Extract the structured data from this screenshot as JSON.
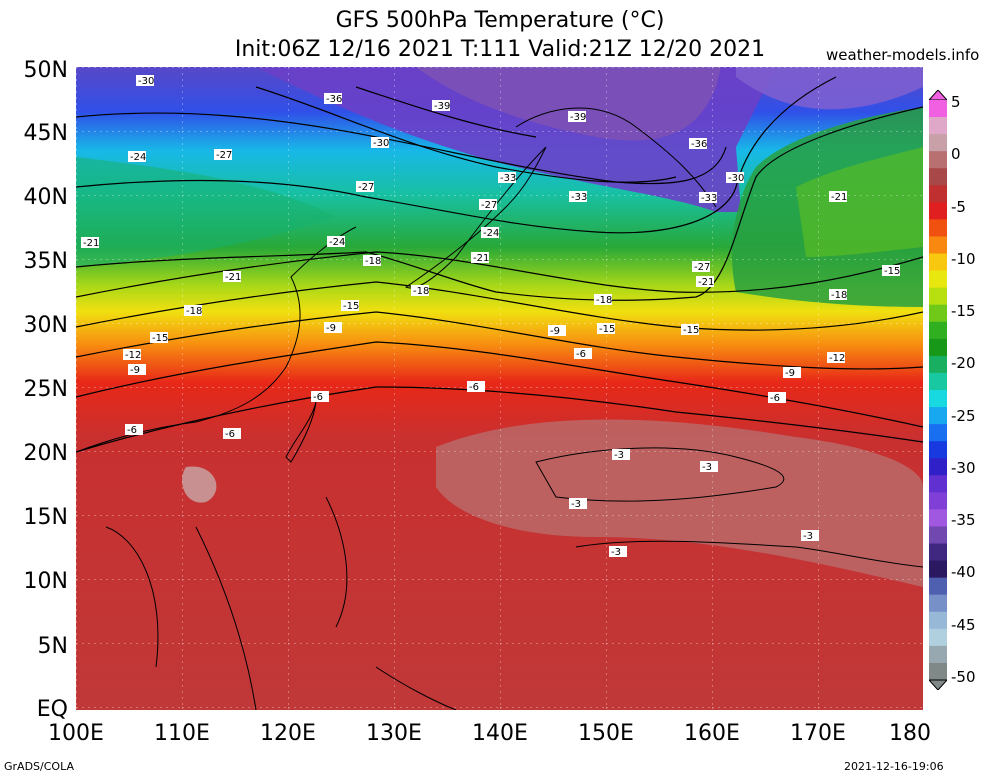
{
  "title_line1": "GFS 500hPa Temperature (°C)",
  "title_line2": "Init:06Z 12/16 2021 T:111 Valid:21Z 12/20 2021",
  "site": "weather-models.info",
  "footer_left": "GrADS/COLA",
  "footer_right": "2021-12-16-19:06",
  "lat_labels": [
    "50N",
    "45N",
    "40N",
    "35N",
    "30N",
    "25N",
    "20N",
    "15N",
    "10N",
    "5N",
    "EQ"
  ],
  "lon_labels": [
    "100E",
    "110E",
    "120E",
    "130E",
    "140E",
    "150E",
    "160E",
    "170E",
    "180"
  ],
  "colorbar": {
    "labels": [
      "5",
      "0",
      "-5",
      "-10",
      "-15",
      "-20",
      "-25",
      "-30",
      "-35",
      "-40",
      "-45",
      "-50"
    ],
    "colors": [
      "#f060e0",
      "#e0a8c8",
      "#c8a0a8",
      "#b87070",
      "#a84848",
      "#c03030",
      "#e02020",
      "#f05010",
      "#f88810",
      "#f8c810",
      "#e8e810",
      "#b8e010",
      "#70c818",
      "#30b020",
      "#189818",
      "#18b060",
      "#18c8a0",
      "#18d8e0",
      "#18a8f0",
      "#1870f0",
      "#1838e0",
      "#3020c8",
      "#6030d0",
      "#8040d8",
      "#a058e0",
      "#7048b0",
      "#402880",
      "#2a1860",
      "#5060b0",
      "#7890c8",
      "#98b8d8",
      "#b0d0e0",
      "#98a8b0",
      "#808888"
    ]
  },
  "contour_labels": [
    "-3",
    "-6",
    "-9",
    "-12",
    "-15",
    "-18",
    "-21",
    "-24",
    "-27",
    "-30",
    "-33",
    "-36",
    "-39"
  ]
}
